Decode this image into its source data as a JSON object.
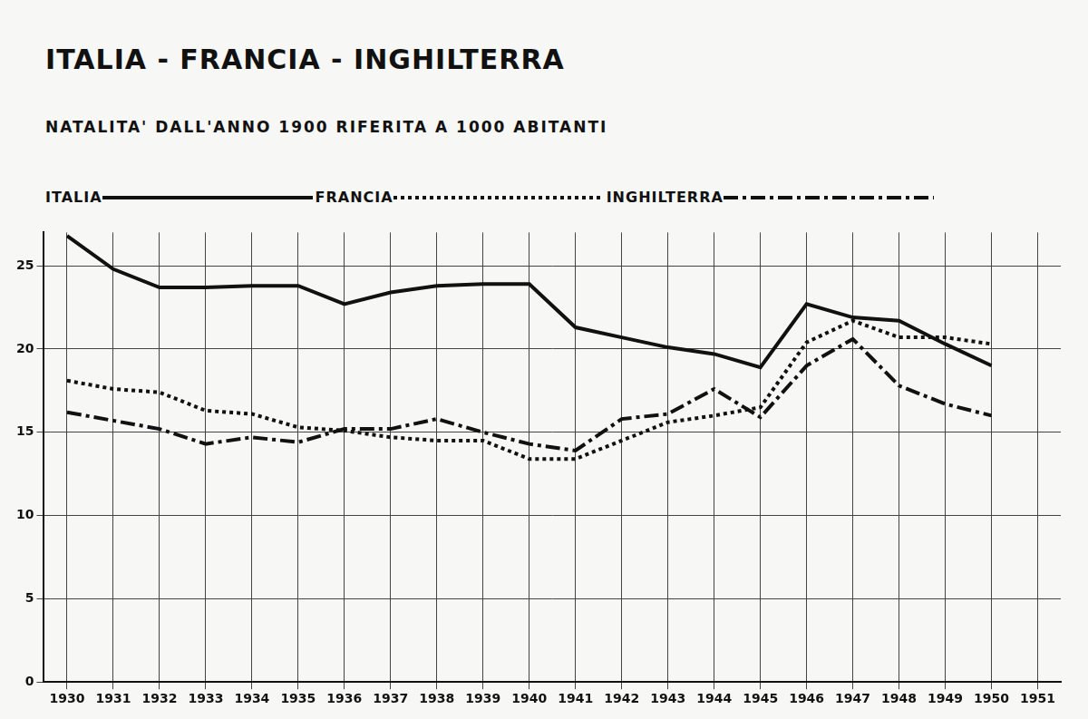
{
  "chart_data": {
    "type": "line",
    "title": "ITALIA - FRANCIA - INGHILTERRA",
    "subtitle": "NATALITA' DALL'ANNO 1900 RIFERITA A 1000 ABITANTI",
    "categories": [
      "1930",
      "1931",
      "1932",
      "1933",
      "1934",
      "1935",
      "1936",
      "1937",
      "1938",
      "1939",
      "1940",
      "1941",
      "1942",
      "1943",
      "1944",
      "1945",
      "1946",
      "1947",
      "1948",
      "1949",
      "1950",
      "1951"
    ],
    "series": [
      {
        "name": "ITALIA",
        "color": "#111111",
        "line_style": "solid",
        "values": [
          26.8,
          24.8,
          23.7,
          23.7,
          23.8,
          23.8,
          22.7,
          23.4,
          23.8,
          23.9,
          23.9,
          21.3,
          20.7,
          20.1,
          19.7,
          18.9,
          22.7,
          21.9,
          21.7,
          20.3,
          19.0,
          null
        ]
      },
      {
        "name": "FRANCIA",
        "color": "#111111",
        "line_style": "dotted",
        "values": [
          18.1,
          17.6,
          17.4,
          16.3,
          16.1,
          15.3,
          15.1,
          14.7,
          14.5,
          14.5,
          13.4,
          13.4,
          14.5,
          15.6,
          16.0,
          16.5,
          20.4,
          21.7,
          20.7,
          20.7,
          20.3,
          null
        ]
      },
      {
        "name": "INGHILTERRA",
        "color": "#111111",
        "line_style": "dashdot",
        "values": [
          16.2,
          15.7,
          15.2,
          14.3,
          14.7,
          14.4,
          15.2,
          15.2,
          15.8,
          15.0,
          14.3,
          13.9,
          15.8,
          16.1,
          17.6,
          15.9,
          19.0,
          20.6,
          17.8,
          16.7,
          16.0,
          null
        ]
      }
    ],
    "ylim": [
      0,
      27
    ],
    "yticks": [
      0,
      5,
      10,
      15,
      20,
      25
    ],
    "grid": true,
    "legend": "top"
  }
}
